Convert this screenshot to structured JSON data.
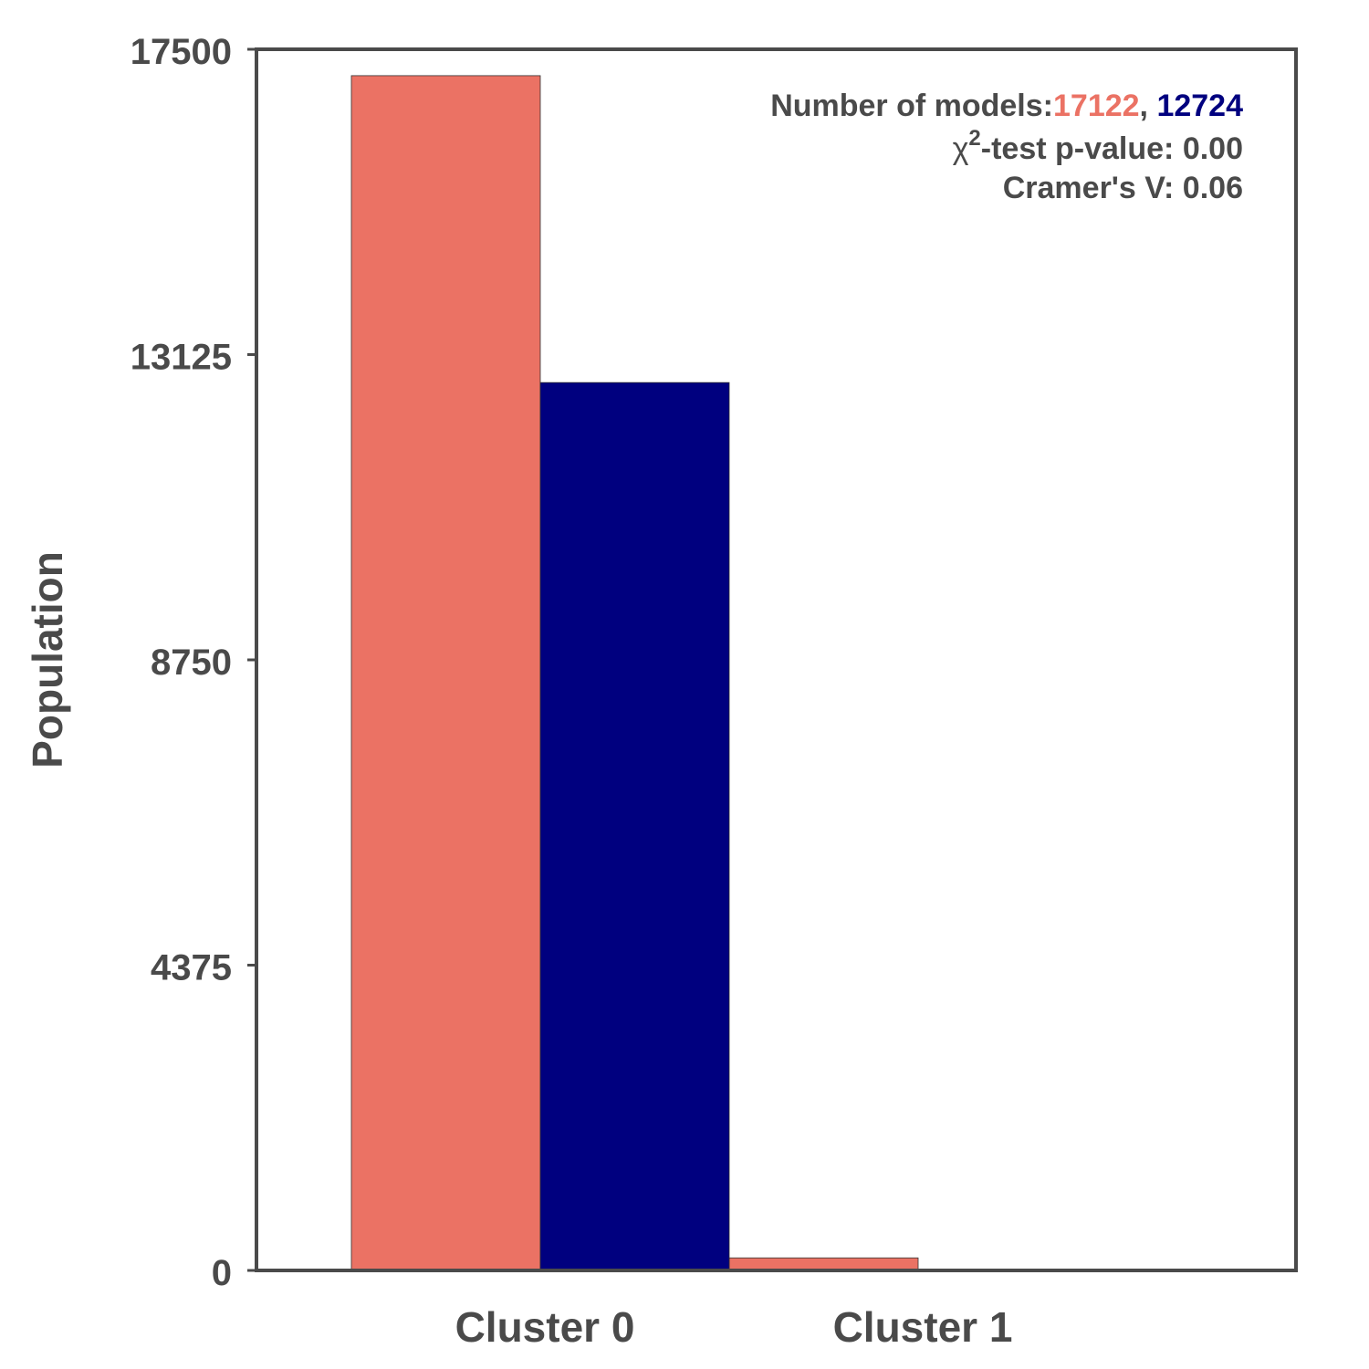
{
  "chart_data": {
    "type": "bar",
    "categories": [
      "Cluster 0",
      "Cluster 1"
    ],
    "series": [
      {
        "values": [
          17122,
          180
        ],
        "color": "#EB7264"
      },
      {
        "values": [
          12724,
          0
        ],
        "color": "#00007F"
      }
    ],
    "xlabel": "",
    "ylabel": "Population",
    "ylim": [
      0,
      17500
    ],
    "yticks": [
      "0",
      "4375",
      "8750",
      "13125",
      "17500"
    ],
    "grid": false,
    "annotation": {
      "models_prefix": "Number of models:",
      "models_count_1": "17122",
      "models_sep": ", ",
      "models_count_2": "12724",
      "chi_symbol": "χ",
      "chi_superscript": "2",
      "chi_rest": "-test p-value: 0.00",
      "cramers": "Cramer's V: 0.06",
      "placement": "top-right"
    }
  },
  "colors": {
    "axis": "#4a4a4a",
    "text": "#4a4a4a"
  }
}
